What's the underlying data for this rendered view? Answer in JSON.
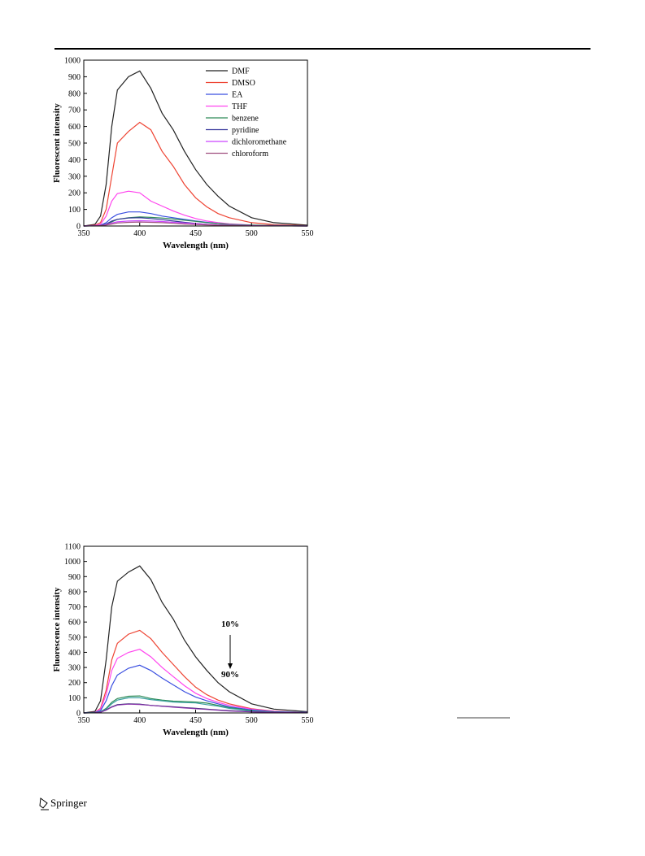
{
  "chart_data": [
    {
      "type": "line",
      "x_label": "Wavelength (nm)",
      "y_label": "Fluorescent intensity",
      "x": [
        350,
        360,
        365,
        370,
        375,
        380,
        390,
        400,
        410,
        420,
        430,
        440,
        450,
        460,
        470,
        480,
        500,
        520,
        550
      ],
      "xlim": [
        350,
        550
      ],
      "xticks": [
        350,
        400,
        450,
        500,
        550
      ],
      "ylim": [
        0,
        1000
      ],
      "yticks": [
        0,
        100,
        200,
        300,
        400,
        500,
        600,
        700,
        800,
        900,
        1000
      ],
      "legend": "upper right",
      "series": [
        {
          "name": "DMF",
          "color": "#222222",
          "values": [
            0,
            10,
            60,
            250,
            600,
            820,
            900,
            935,
            830,
            680,
            580,
            450,
            340,
            250,
            180,
            120,
            50,
            20,
            5
          ]
        },
        {
          "name": "DMSO",
          "color": "#ee4433",
          "values": [
            0,
            5,
            20,
            100,
            300,
            500,
            570,
            625,
            580,
            450,
            360,
            250,
            170,
            115,
            75,
            50,
            20,
            8,
            2
          ]
        },
        {
          "name": "EA",
          "color": "#3a4fe0",
          "values": [
            0,
            2,
            5,
            20,
            50,
            70,
            85,
            85,
            75,
            60,
            50,
            40,
            30,
            22,
            15,
            10,
            5,
            3,
            1
          ]
        },
        {
          "name": "THF",
          "color": "#ff44ee",
          "values": [
            0,
            3,
            10,
            60,
            150,
            195,
            210,
            200,
            150,
            120,
            90,
            65,
            45,
            30,
            20,
            13,
            6,
            3,
            1
          ]
        },
        {
          "name": "benzene",
          "color": "#2e8b57",
          "values": [
            0,
            1,
            3,
            10,
            25,
            40,
            50,
            55,
            52,
            48,
            42,
            35,
            28,
            20,
            15,
            10,
            5,
            3,
            1
          ]
        },
        {
          "name": "pyridine",
          "color": "#333399",
          "values": [
            0,
            1,
            3,
            12,
            30,
            40,
            48,
            50,
            45,
            38,
            30,
            22,
            15,
            10,
            7,
            5,
            2,
            1,
            0
          ]
        },
        {
          "name": "dichloromethane",
          "color": "#cc44ff",
          "values": [
            0,
            1,
            2,
            8,
            18,
            25,
            30,
            32,
            30,
            27,
            22,
            18,
            14,
            10,
            7,
            5,
            2,
            1,
            0
          ]
        },
        {
          "name": "chloroform",
          "color": "#a05080",
          "values": [
            0,
            1,
            2,
            6,
            12,
            18,
            22,
            24,
            22,
            20,
            16,
            12,
            9,
            7,
            5,
            3,
            1,
            1,
            0
          ]
        }
      ]
    },
    {
      "type": "line",
      "x_label": "Wavelength (nm)",
      "y_label": "Fluorescence intensity",
      "annotations": [
        "10%",
        "90%"
      ],
      "x": [
        350,
        360,
        365,
        370,
        375,
        380,
        390,
        400,
        410,
        420,
        430,
        440,
        450,
        460,
        470,
        480,
        500,
        520,
        550
      ],
      "xlim": [
        350,
        550
      ],
      "xticks": [
        350,
        400,
        450,
        500,
        550
      ],
      "ylim": [
        0,
        1100
      ],
      "yticks": [
        0,
        100,
        200,
        300,
        400,
        500,
        600,
        700,
        800,
        900,
        1000,
        1100
      ],
      "series": [
        {
          "color": "#222222",
          "values": [
            0,
            10,
            80,
            350,
            700,
            870,
            930,
            970,
            880,
            730,
            620,
            480,
            370,
            280,
            200,
            140,
            60,
            25,
            8
          ]
        },
        {
          "color": "#ee4433",
          "values": [
            0,
            5,
            30,
            150,
            350,
            460,
            520,
            545,
            490,
            400,
            320,
            240,
            170,
            120,
            85,
            60,
            28,
            12,
            4
          ]
        },
        {
          "color": "#ff44ee",
          "values": [
            0,
            4,
            25,
            120,
            280,
            360,
            400,
            420,
            370,
            300,
            240,
            180,
            130,
            95,
            70,
            50,
            25,
            10,
            3
          ]
        },
        {
          "color": "#3a4fe0",
          "values": [
            0,
            3,
            15,
            80,
            180,
            250,
            295,
            315,
            280,
            230,
            185,
            140,
            105,
            80,
            60,
            40,
            20,
            8,
            3
          ]
        },
        {
          "color": "#2e8b57",
          "values": [
            0,
            2,
            8,
            30,
            70,
            95,
            110,
            112,
            95,
            85,
            78,
            75,
            72,
            65,
            50,
            35,
            15,
            6,
            2
          ]
        },
        {
          "color": "#3aa0a0",
          "values": [
            0,
            2,
            7,
            25,
            60,
            85,
            100,
            100,
            88,
            80,
            72,
            68,
            66,
            55,
            45,
            30,
            13,
            5,
            2
          ]
        },
        {
          "color": "#222266",
          "values": [
            0,
            1,
            5,
            20,
            40,
            55,
            60,
            58,
            50,
            45,
            40,
            35,
            30,
            25,
            20,
            15,
            8,
            4,
            1
          ]
        },
        {
          "color": "#8833aa",
          "values": [
            0,
            1,
            5,
            18,
            38,
            52,
            58,
            56,
            50,
            44,
            38,
            33,
            28,
            23,
            18,
            13,
            7,
            3,
            1
          ]
        }
      ]
    }
  ],
  "footer": {
    "publisher": "Springer"
  }
}
